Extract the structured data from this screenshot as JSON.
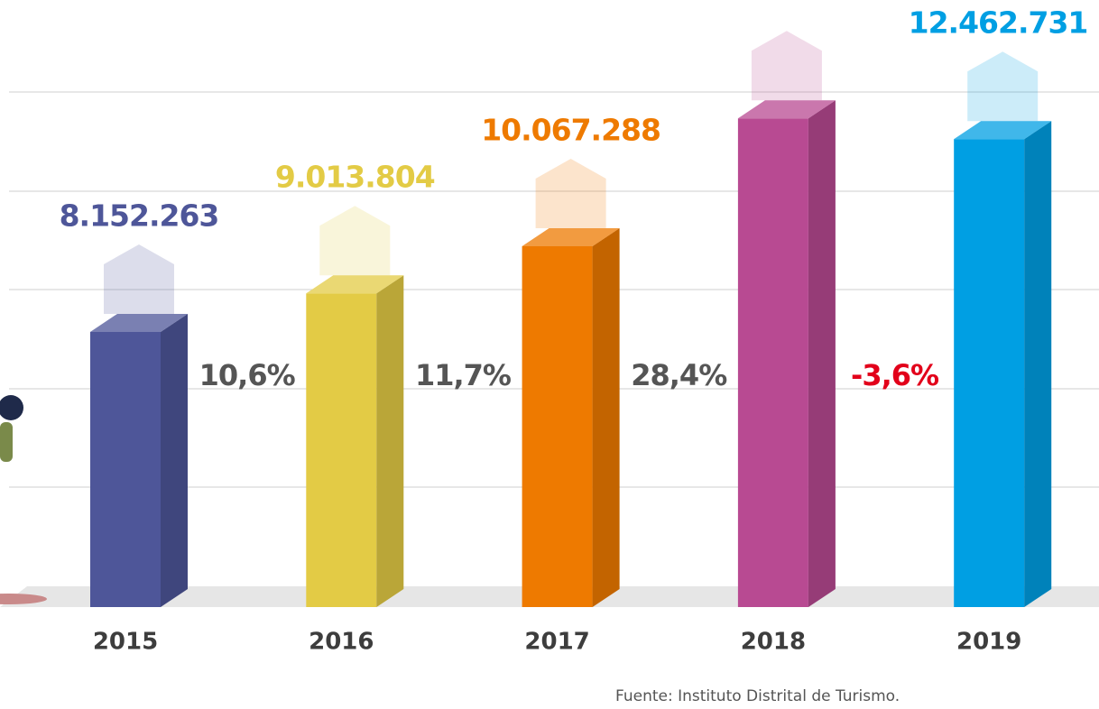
{
  "chart_data": {
    "type": "bar",
    "categories": [
      "2015",
      "2016",
      "2017",
      "2018",
      "2019"
    ],
    "values": [
      8152263,
      9013804,
      10067288,
      12926000,
      12462731
    ],
    "value_labels": [
      "8.152.263",
      "9.013.804",
      "10.067.288",
      null,
      "12.462.731"
    ],
    "colors": [
      "#4e5699",
      "#e3cb45",
      "#ee7a00",
      "#b84a92",
      "#009fe3"
    ],
    "ylim": [
      2000000,
      14000000
    ],
    "annotations": [
      {
        "text": "10,6%",
        "color": "#555555"
      },
      {
        "text": "11,7%",
        "color": "#555555"
      },
      {
        "text": "28,4%",
        "color": "#555555"
      },
      {
        "text": "-3,6%",
        "color": "#e2001a"
      }
    ],
    "source": "Fuente: Instituto Distrital de Turismo."
  }
}
